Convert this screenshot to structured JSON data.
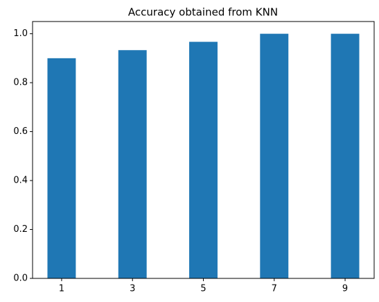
{
  "chart_data": {
    "type": "bar",
    "title": "Accuracy obtained from KNN",
    "categories": [
      "1",
      "3",
      "5",
      "7",
      "9"
    ],
    "values": [
      0.9,
      0.933,
      0.967,
      1.0,
      1.0
    ],
    "color": "#1f77b4",
    "ylim": [
      0,
      1.05
    ],
    "yticks": [
      {
        "value": 0,
        "label": "0.0"
      },
      {
        "value": 0.2,
        "label": "0.2"
      },
      {
        "value": 0.4,
        "label": "0.4"
      },
      {
        "value": 0.6,
        "label": "0.6"
      },
      {
        "value": 0.8,
        "label": "0.8"
      },
      {
        "value": 1.0,
        "label": "1.0"
      }
    ],
    "grid": false
  }
}
